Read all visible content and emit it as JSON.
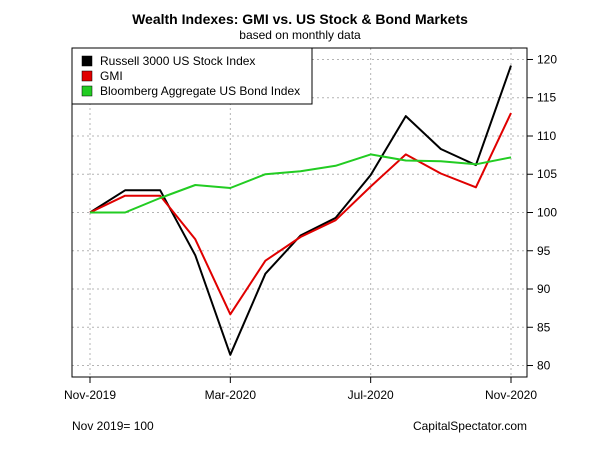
{
  "chart_data": {
    "type": "line",
    "title": "Wealth Indexes: GMI vs. US Stock & Bond Markets",
    "subtitle": "based on monthly data",
    "x_ticks": [
      "Nov-2019",
      "Mar-2020",
      "Jul-2020",
      "Nov-2020"
    ],
    "x_tick_index": [
      0,
      4,
      8,
      12
    ],
    "y_ticks": [
      80,
      85,
      90,
      95,
      100,
      105,
      110,
      115,
      120
    ],
    "ylim": [
      78.5,
      121.5
    ],
    "x_months": [
      "2019-11",
      "2019-12",
      "2020-01",
      "2020-02",
      "2020-03",
      "2020-04",
      "2020-05",
      "2020-06",
      "2020-07",
      "2020-08",
      "2020-09",
      "2020-10",
      "2020-11"
    ],
    "grid": true,
    "legend_position": "top-left",
    "series": [
      {
        "name": "Russell 3000 US Stock Index",
        "color": "#000000",
        "values": [
          100,
          102.9,
          102.9,
          94.4,
          81.4,
          92.0,
          97.0,
          99.3,
          104.9,
          112.6,
          108.3,
          106.2,
          119.2
        ]
      },
      {
        "name": "GMI",
        "color": "#e00000",
        "values": [
          100,
          102.2,
          102.2,
          96.5,
          86.7,
          93.7,
          96.8,
          99.0,
          103.4,
          107.6,
          105.1,
          103.3,
          113.0
        ]
      },
      {
        "name": "Bloomberg Aggregate US Bond Index",
        "color": "#22cc22",
        "values": [
          100,
          100.0,
          101.9,
          103.6,
          103.2,
          105.0,
          105.4,
          106.1,
          107.6,
          106.8,
          106.7,
          106.3,
          107.2
        ]
      }
    ]
  },
  "footer": {
    "left": "Nov 2019= 100",
    "right": "CapitalSpectator.com"
  }
}
